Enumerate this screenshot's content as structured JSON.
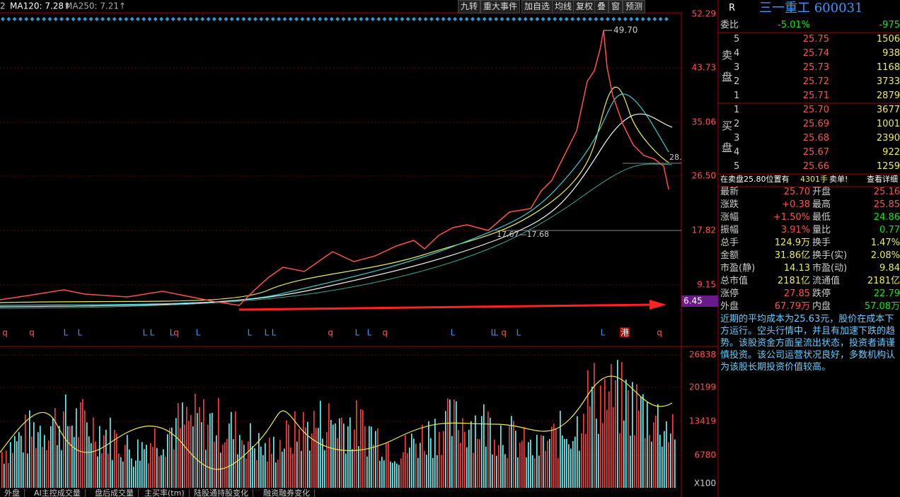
{
  "toolbar": {
    "ma_prefix": "2",
    "ma120": "MA120: 7.28↑",
    "ma250": "MA250: 7.21↑",
    "buttons": [
      "九转",
      "重大事件",
      "加自选",
      "均线",
      "复权",
      "叠",
      "窗",
      "预测"
    ]
  },
  "price_axis": [
    "52.29",
    "43.73",
    "35.06",
    "26.50",
    "17.82",
    "9.15"
  ],
  "current_price_tag": "6.45",
  "annotations": {
    "high": "49.70",
    "mid": "17.67—17.68",
    "right": "28."
  },
  "markers": [
    "q",
    "q",
    "L",
    "L",
    "L",
    "L",
    "L",
    "q",
    "L",
    "L",
    "L",
    "L",
    "q",
    "L",
    "L",
    "q",
    "L",
    "L",
    "L",
    "q",
    "L",
    "L",
    "港",
    "q"
  ],
  "volume_axis": [
    "26838",
    "20199",
    "13419",
    "6780",
    "X100"
  ],
  "tabs": [
    "外盘",
    "AI主控成交量",
    "盘后成交量",
    "主买率(tm)",
    "陆股通持股变化",
    "融资融券变化"
  ],
  "quote": {
    "flag": "R",
    "name": "三一重工 600031",
    "ratio_label": "委比",
    "ratio_pct": "-5.01%",
    "ratio_diff": "-975",
    "sell_label": "卖盘",
    "buy_label": "买盘",
    "sell": [
      [
        "5",
        "25.75",
        "1506"
      ],
      [
        "4",
        "25.74",
        "938"
      ],
      [
        "3",
        "25.73",
        "1168"
      ],
      [
        "2",
        "25.72",
        "3733"
      ],
      [
        "1",
        "25.71",
        "2879"
      ]
    ],
    "buy": [
      [
        "1",
        "25.70",
        "3677"
      ],
      [
        "2",
        "25.69",
        "1001"
      ],
      [
        "3",
        "25.68",
        "2390"
      ],
      [
        "4",
        "25.67",
        "922"
      ],
      [
        "5",
        "25.66",
        "1259"
      ]
    ],
    "notice": {
      "text": "在卖盘25.80位置有",
      "qty": "4301手",
      "tail": "卖单!",
      "link": "查看详细"
    },
    "stats": [
      [
        "最新",
        "25.70",
        "开盘",
        "25.16"
      ],
      [
        "涨跌",
        "+0.38",
        "最高",
        "25.85"
      ],
      [
        "涨幅",
        "+1.50%",
        "最低",
        "24.86"
      ],
      [
        "振幅",
        "3.91%",
        "量比",
        "0.77"
      ],
      [
        "总手",
        "124.9万",
        "换手",
        "1.47%"
      ],
      [
        "金额",
        "31.86亿",
        "换手(实)",
        "2.08%"
      ],
      [
        "市盈(静)",
        "14.13",
        "市盈(动)",
        "9.84"
      ],
      [
        "总市值",
        "2181亿",
        "流通值",
        "2181亿"
      ],
      [
        "涨停",
        "27.85",
        "跌停",
        "22.79"
      ],
      [
        "外盘",
        "67.79万",
        "内盘",
        "57.08万"
      ]
    ],
    "comment": "近期的平均成本为25.63元，股价在成本下方运行。空头行情中，并且有加速下跌的趋势。该股资金方面呈流出状态，投资者请谨慎投资。该公司运营状况良好，多数机构认为该股长期投资价值较高。"
  }
}
